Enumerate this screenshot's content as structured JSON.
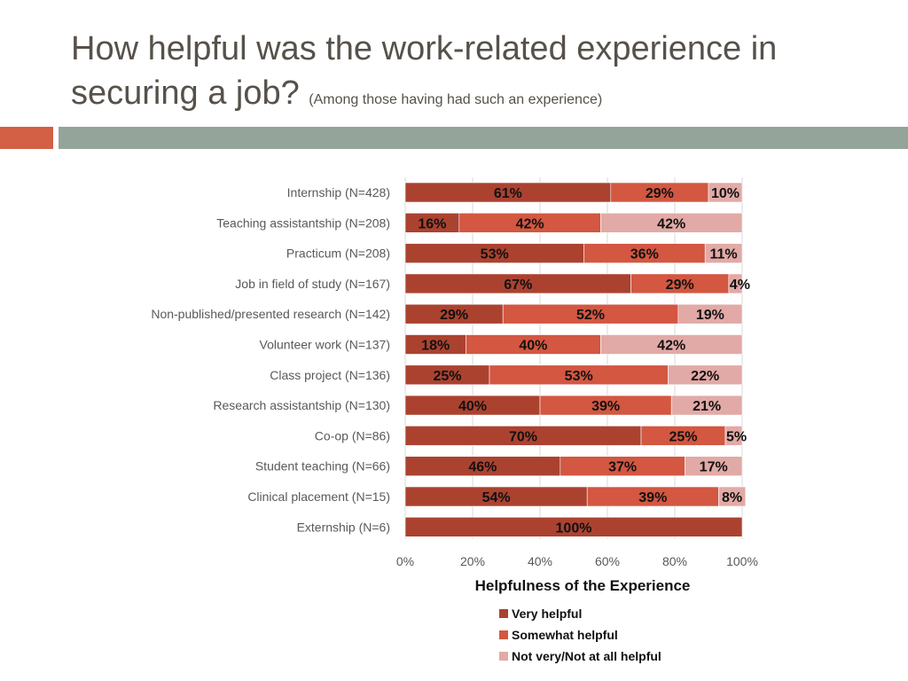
{
  "header": {
    "title": "How helpful was the work-related experience in securing a job?",
    "subtitle": "(Among those having had such an experience)"
  },
  "colors": {
    "very_helpful": "#ab4230",
    "somewhat_helpful": "#d35741",
    "not_helpful": "#e2aaa6"
  },
  "chart_data": {
    "type": "bar",
    "orientation": "horizontal",
    "stacked": true,
    "xlabel": "Helpfulness of the Experience",
    "xlim": [
      0,
      100
    ],
    "xticks": [
      "0%",
      "20%",
      "40%",
      "60%",
      "80%",
      "100%"
    ],
    "categories": [
      "Internship (N=428)",
      "Teaching assistantship (N=208)",
      "Practicum (N=208)",
      "Job in field of study (N=167)",
      "Non-published/presented research (N=142)",
      "Volunteer work (N=137)",
      "Class project (N=136)",
      "Research assistantship (N=130)",
      "Co-op (N=86)",
      "Student teaching (N=66)",
      "Clinical placement (N=15)",
      "Externship (N=6)"
    ],
    "series": [
      {
        "name": "Very helpful",
        "values": [
          61,
          16,
          53,
          67,
          29,
          18,
          25,
          40,
          70,
          46,
          54,
          100
        ]
      },
      {
        "name": "Somewhat helpful",
        "values": [
          29,
          42,
          36,
          29,
          52,
          40,
          53,
          39,
          25,
          37,
          39,
          0
        ]
      },
      {
        "name": "Not very/Not at all helpful",
        "values": [
          10,
          42,
          11,
          4,
          19,
          42,
          22,
          21,
          5,
          17,
          8,
          0
        ]
      }
    ],
    "legend_position": "bottom"
  }
}
